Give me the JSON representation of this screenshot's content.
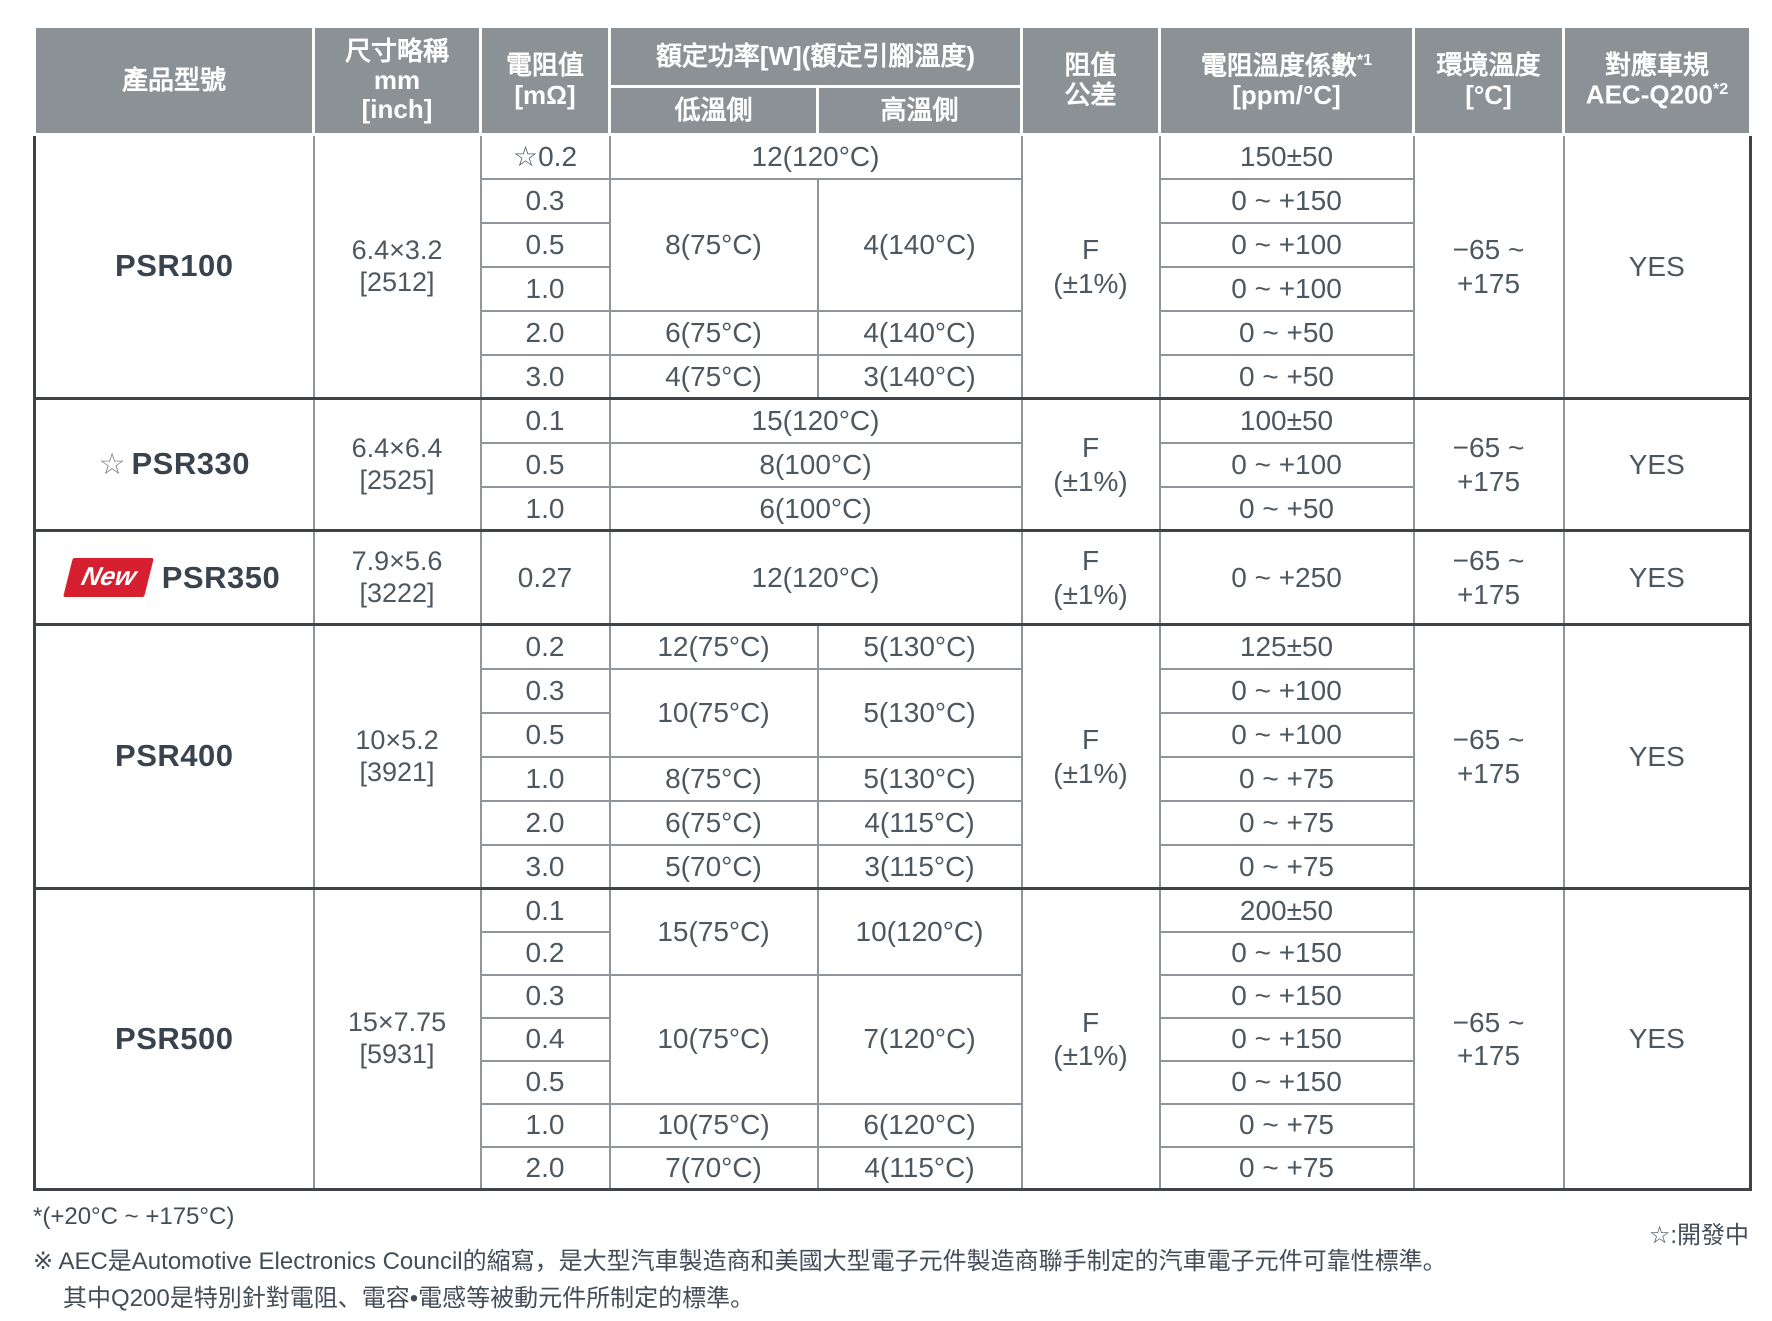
{
  "colors": {
    "header_bg": "#8c9196",
    "accent_red": "#d6202f",
    "section_border": "#3f4347",
    "body_text": "#4d5760"
  },
  "table": {
    "headers": {
      "product": "產品型號",
      "size": "尺寸略稱\nmm\n[inch]",
      "resistance": "電阻值\n[mΩ]",
      "power": "額定功率[W](額定引腳溫度)",
      "power_low": "低溫側",
      "power_high": "高溫側",
      "tolerance": "阻值\n公差",
      "tcr_line1": "電阻溫度係數",
      "tcr_sup": "*1",
      "tcr_line2": "[ppm/°C]",
      "ambient": "環境溫度\n[°C]",
      "aec_line1": "對應車規",
      "aec_line2": "AEC-Q200",
      "aec_sup": "*2"
    },
    "products": [
      {
        "star": "",
        "badge": "",
        "name": "PSR100",
        "size": "6.4×3.2\n[2512]",
        "tolerance": "F\n(±1%)",
        "ambient": "−65 ~\n+175",
        "aec": "YES",
        "rows": [
          {
            "r": "☆0.2",
            "power": "12(120°C)",
            "tcr": "150±50"
          },
          {
            "r": "0.3",
            "low": "8(75°C)",
            "high": "4(140°C)",
            "tcr": "0 ~ +150"
          },
          {
            "r": "0.5",
            "tcr": "0 ~ +100"
          },
          {
            "r": "1.0",
            "tcr": "0 ~ +100"
          },
          {
            "r": "2.0",
            "low": "6(75°C)",
            "high": "4(140°C)",
            "tcr": "0 ~ +50"
          },
          {
            "r": "3.0",
            "low": "4(75°C)",
            "high": "3(140°C)",
            "tcr": "0 ~ +50"
          }
        ]
      },
      {
        "star": "☆",
        "badge": "",
        "name": "PSR330",
        "size": "6.4×6.4\n[2525]",
        "tolerance": "F\n(±1%)",
        "ambient": "−65 ~\n+175",
        "aec": "YES",
        "rows": [
          {
            "r": "0.1",
            "power": "15(120°C)",
            "tcr": "100±50"
          },
          {
            "r": "0.5",
            "power": "8(100°C)",
            "tcr": "0 ~ +100"
          },
          {
            "r": "1.0",
            "power": "6(100°C)",
            "tcr": "0 ~ +50"
          }
        ]
      },
      {
        "star": "",
        "badge": "New",
        "name": "PSR350",
        "size": "7.9×5.6\n[3222]",
        "tolerance": "F\n(±1%)",
        "ambient": "−65 ~\n+175",
        "aec": "YES",
        "rows": [
          {
            "r": "0.27",
            "power": "12(120°C)",
            "tcr": "0 ~ +250"
          }
        ]
      },
      {
        "star": "",
        "badge": "",
        "name": "PSR400",
        "size": "10×5.2\n[3921]",
        "tolerance": "F\n(±1%)",
        "ambient": "−65 ~\n+175",
        "aec": "YES",
        "rows": [
          {
            "r": "0.2",
            "low": "12(75°C)",
            "high": "5(130°C)",
            "tcr": "125±50"
          },
          {
            "r": "0.3",
            "low": "10(75°C)",
            "high": "5(130°C)",
            "tcr": "0 ~ +100"
          },
          {
            "r": "0.5",
            "tcr": "0 ~ +100"
          },
          {
            "r": "1.0",
            "low": "8(75°C)",
            "high": "5(130°C)",
            "tcr": "0 ~ +75"
          },
          {
            "r": "2.0",
            "low": "6(75°C)",
            "high": "4(115°C)",
            "tcr": "0 ~ +75"
          },
          {
            "r": "3.0",
            "low": "5(70°C)",
            "high": "3(115°C)",
            "tcr": "0 ~ +75"
          }
        ]
      },
      {
        "star": "",
        "badge": "",
        "name": "PSR500",
        "size": "15×7.75\n[5931]",
        "tolerance": "F\n(±1%)",
        "ambient": "−65 ~\n+175",
        "aec": "YES",
        "rows": [
          {
            "r": "0.1",
            "low": "15(75°C)",
            "high": "10(120°C)",
            "tcr": "200±50"
          },
          {
            "r": "0.2",
            "tcr": "0 ~ +150"
          },
          {
            "r": "0.3",
            "low": "10(75°C)",
            "high": "7(120°C)",
            "tcr": "0 ~ +150"
          },
          {
            "r": "0.4",
            "tcr": "0 ~ +150"
          },
          {
            "r": "0.5",
            "tcr": "0 ~ +150"
          },
          {
            "r": "1.0",
            "low": "10(75°C)",
            "high": "6(120°C)",
            "tcr": "0 ~ +75"
          },
          {
            "r": "2.0",
            "low": "7(70°C)",
            "high": "4(115°C)",
            "tcr": "0 ~ +75"
          }
        ]
      }
    ],
    "footnotes": {
      "note_temp": "*(+20°C ~ +175°C)",
      "note_aec_1": "※ AEC是Automotive Electronics Council的縮寫，是大型汽車製造商和美國大型電子元件製造商聯手制定的汽車電子元件可靠性標準。",
      "note_aec_2": "其中Q200是特別針對電阻、電容•電感等被動元件所制定的標準。",
      "note_dev": "☆:開發中"
    }
  }
}
